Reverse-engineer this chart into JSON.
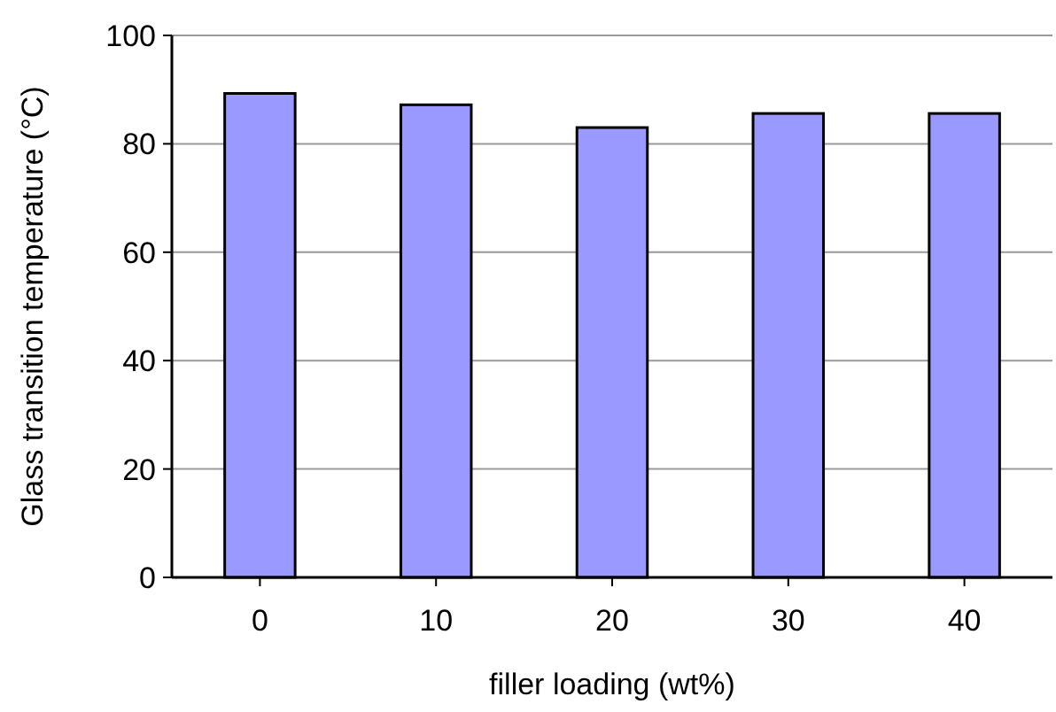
{
  "chart_data": {
    "type": "bar",
    "xlabel": "filler loading (wt%)",
    "ylabel": "Glass transition temperature (°C)",
    "categories": [
      "0",
      "10",
      "20",
      "30",
      "40"
    ],
    "values": [
      89.3,
      87.2,
      83.0,
      85.6,
      85.6
    ],
    "color": "#9999ff",
    "ylim": [
      0,
      100
    ],
    "yticks": [
      0,
      20,
      40,
      60,
      80,
      100
    ],
    "grid": "y"
  }
}
